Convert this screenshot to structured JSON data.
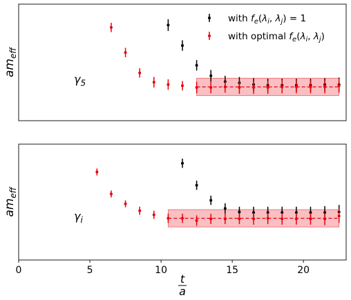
{
  "chart_data": [
    {
      "type": "scatter",
      "ylabel": "am",
      "ylabel_sub": "eff",
      "annotation_main": "γ",
      "annotation_sub": "5",
      "show_yticks": false,
      "grid": false,
      "legend_placement": "top-right",
      "ylim": [
        0,
        1
      ],
      "series": [
        {
          "name_parts": [
            "with ",
            "f",
            "e",
            "(",
            "λ",
            "i",
            ", ",
            "λ",
            "j",
            ") = 1"
          ],
          "color": "#000000",
          "points": [
            {
              "x": 10.5,
              "y": 0.82,
              "err": 0.05
            },
            {
              "x": 11.5,
              "y": 0.645,
              "err": 0.045
            },
            {
              "x": 12.5,
              "y": 0.475,
              "err": 0.045
            },
            {
              "x": 13.5,
              "y": 0.385,
              "err": 0.05
            },
            {
              "x": 14.5,
              "y": 0.335,
              "err": 0.05
            },
            {
              "x": 15.5,
              "y": 0.325,
              "err": 0.05
            },
            {
              "x": 16.5,
              "y": 0.31,
              "err": 0.055
            },
            {
              "x": 17.5,
              "y": 0.305,
              "err": 0.055
            },
            {
              "x": 18.5,
              "y": 0.305,
              "err": 0.055
            },
            {
              "x": 19.5,
              "y": 0.305,
              "err": 0.055
            },
            {
              "x": 20.5,
              "y": 0.305,
              "err": 0.055
            },
            {
              "x": 21.5,
              "y": 0.31,
              "err": 0.055
            },
            {
              "x": 22.5,
              "y": 0.31,
              "err": 0.06
            }
          ]
        },
        {
          "name_parts": [
            "with optimal ",
            "f",
            "e",
            "(",
            "λ",
            "i",
            ", ",
            "λ",
            "j",
            ")"
          ],
          "color": "#e8000b",
          "points": [
            {
              "x": 6.5,
              "y": 0.8,
              "err": 0.04
            },
            {
              "x": 7.5,
              "y": 0.585,
              "err": 0.04
            },
            {
              "x": 8.5,
              "y": 0.41,
              "err": 0.04
            },
            {
              "x": 9.5,
              "y": 0.33,
              "err": 0.045
            },
            {
              "x": 10.5,
              "y": 0.31,
              "err": 0.045
            },
            {
              "x": 11.5,
              "y": 0.3,
              "err": 0.04
            },
            {
              "x": 12.5,
              "y": 0.285,
              "err": 0.05
            },
            {
              "x": 13.5,
              "y": 0.285,
              "err": 0.05
            },
            {
              "x": 14.5,
              "y": 0.29,
              "err": 0.05
            },
            {
              "x": 15.5,
              "y": 0.285,
              "err": 0.055
            },
            {
              "x": 16.5,
              "y": 0.285,
              "err": 0.055
            },
            {
              "x": 17.5,
              "y": 0.285,
              "err": 0.055
            },
            {
              "x": 18.5,
              "y": 0.29,
              "err": 0.055
            },
            {
              "x": 19.5,
              "y": 0.29,
              "err": 0.055
            },
            {
              "x": 20.5,
              "y": 0.29,
              "err": 0.055
            },
            {
              "x": 21.5,
              "y": 0.29,
              "err": 0.055
            },
            {
              "x": 22.5,
              "y": 0.3,
              "err": 0.06
            }
          ]
        }
      ],
      "fit": {
        "x_start": 12.5,
        "x_end": 22.5,
        "y": 0.29,
        "err": 0.075,
        "color": "#e8000b"
      }
    },
    {
      "type": "scatter",
      "ylabel": "am",
      "ylabel_sub": "eff",
      "annotation_main": "γ",
      "annotation_sub": "i",
      "show_yticks": false,
      "grid": false,
      "xlabel_num": "t",
      "xlabel_den": "a",
      "xlim": [
        0,
        23
      ],
      "xticks": [
        0,
        5,
        10,
        15,
        20
      ],
      "ylim": [
        0,
        1
      ],
      "series": [
        {
          "name": "",
          "color": "#000000",
          "points": [
            {
              "x": 11.5,
              "y": 0.835,
              "err": 0.04
            },
            {
              "x": 12.5,
              "y": 0.645,
              "err": 0.04
            },
            {
              "x": 13.5,
              "y": 0.515,
              "err": 0.04
            },
            {
              "x": 14.5,
              "y": 0.445,
              "err": 0.045
            },
            {
              "x": 15.5,
              "y": 0.415,
              "err": 0.045
            },
            {
              "x": 16.5,
              "y": 0.41,
              "err": 0.05
            },
            {
              "x": 17.5,
              "y": 0.41,
              "err": 0.05
            },
            {
              "x": 18.5,
              "y": 0.41,
              "err": 0.05
            },
            {
              "x": 19.5,
              "y": 0.41,
              "err": 0.05
            },
            {
              "x": 20.5,
              "y": 0.41,
              "err": 0.05
            },
            {
              "x": 21.5,
              "y": 0.41,
              "err": 0.055
            },
            {
              "x": 22.5,
              "y": 0.415,
              "err": 0.06
            }
          ]
        },
        {
          "name": "",
          "color": "#e8000b",
          "points": [
            {
              "x": 5.5,
              "y": 0.76,
              "err": 0.03
            },
            {
              "x": 6.5,
              "y": 0.57,
              "err": 0.03
            },
            {
              "x": 7.5,
              "y": 0.485,
              "err": 0.03
            },
            {
              "x": 8.5,
              "y": 0.425,
              "err": 0.035
            },
            {
              "x": 9.5,
              "y": 0.39,
              "err": 0.035
            },
            {
              "x": 10.5,
              "y": 0.36,
              "err": 0.04
            },
            {
              "x": 11.5,
              "y": 0.36,
              "err": 0.04
            },
            {
              "x": 12.5,
              "y": 0.34,
              "err": 0.045
            },
            {
              "x": 13.5,
              "y": 0.355,
              "err": 0.045
            },
            {
              "x": 14.5,
              "y": 0.355,
              "err": 0.045
            },
            {
              "x": 15.5,
              "y": 0.355,
              "err": 0.045
            },
            {
              "x": 16.5,
              "y": 0.355,
              "err": 0.05
            },
            {
              "x": 17.5,
              "y": 0.36,
              "err": 0.05
            },
            {
              "x": 18.5,
              "y": 0.355,
              "err": 0.05
            },
            {
              "x": 19.5,
              "y": 0.355,
              "err": 0.05
            },
            {
              "x": 20.5,
              "y": 0.355,
              "err": 0.05
            },
            {
              "x": 21.5,
              "y": 0.355,
              "err": 0.055
            },
            {
              "x": 22.5,
              "y": 0.38,
              "err": 0.06
            }
          ]
        }
      ],
      "fit": {
        "x_start": 10.5,
        "x_end": 22.5,
        "y": 0.36,
        "err": 0.075,
        "color": "#e8000b"
      }
    }
  ]
}
